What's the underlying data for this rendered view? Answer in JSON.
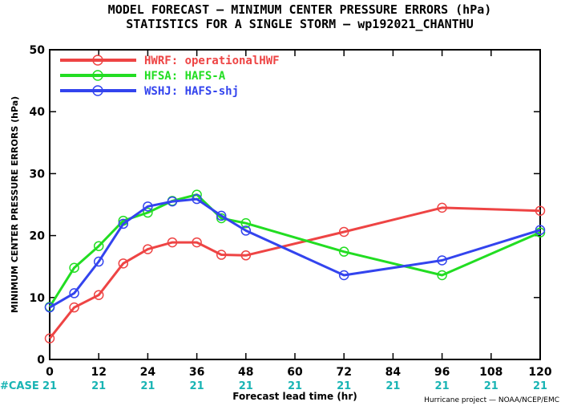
{
  "title_line1": "MODEL FORECAST — MINIMUM CENTER PRESSURE ERRORS (hPa)",
  "title_line2": "STATISTICS FOR A SINGLE STORM — wp192021_CHANTHU",
  "credit": "Hurricane project — NOAA/NCEP/EMC",
  "case_label": "#CASE",
  "case_counts": [
    "21",
    "21",
    "21",
    "21",
    "21",
    "21",
    "21",
    "21",
    "21",
    "21",
    "21"
  ],
  "case_color": "#19b4b4",
  "chart_data": {
    "type": "line",
    "xlabel": "Forecast lead time (hr)",
    "ylabel": "MINIMUM CENTER PRESSURE ERRORS (hPa)",
    "xlim": [
      0,
      120
    ],
    "ylim": [
      0,
      50
    ],
    "xticks": [
      0,
      12,
      24,
      36,
      48,
      60,
      72,
      84,
      96,
      108,
      120
    ],
    "yticks": [
      0,
      10,
      20,
      30,
      40,
      50
    ],
    "grid": false,
    "legend_position": "top-left",
    "series": [
      {
        "name": "HWRF: operationalHWF",
        "color": "#ee4444",
        "x": [
          0,
          6,
          12,
          18,
          24,
          30,
          36,
          42,
          48,
          72,
          96,
          120
        ],
        "y": [
          3.4,
          8.4,
          10.4,
          15.5,
          17.8,
          18.9,
          18.9,
          16.9,
          16.8,
          20.6,
          24.5,
          24.0
        ]
      },
      {
        "name": "HFSA: HAFS-A",
        "color": "#22dd22",
        "x": [
          0,
          6,
          12,
          18,
          24,
          30,
          36,
          42,
          48,
          72,
          96,
          120
        ],
        "y": [
          8.5,
          14.8,
          18.3,
          22.4,
          23.7,
          25.6,
          26.6,
          22.8,
          22.0,
          17.4,
          13.6,
          20.5
        ]
      },
      {
        "name": "WSHJ: HAFS-shj",
        "color": "#3344ee",
        "x": [
          0,
          6,
          12,
          18,
          24,
          30,
          36,
          42,
          48,
          72,
          96,
          120
        ],
        "y": [
          8.4,
          10.7,
          15.8,
          21.9,
          24.7,
          25.5,
          25.9,
          23.2,
          20.8,
          13.6,
          16.0,
          20.9
        ]
      }
    ]
  }
}
